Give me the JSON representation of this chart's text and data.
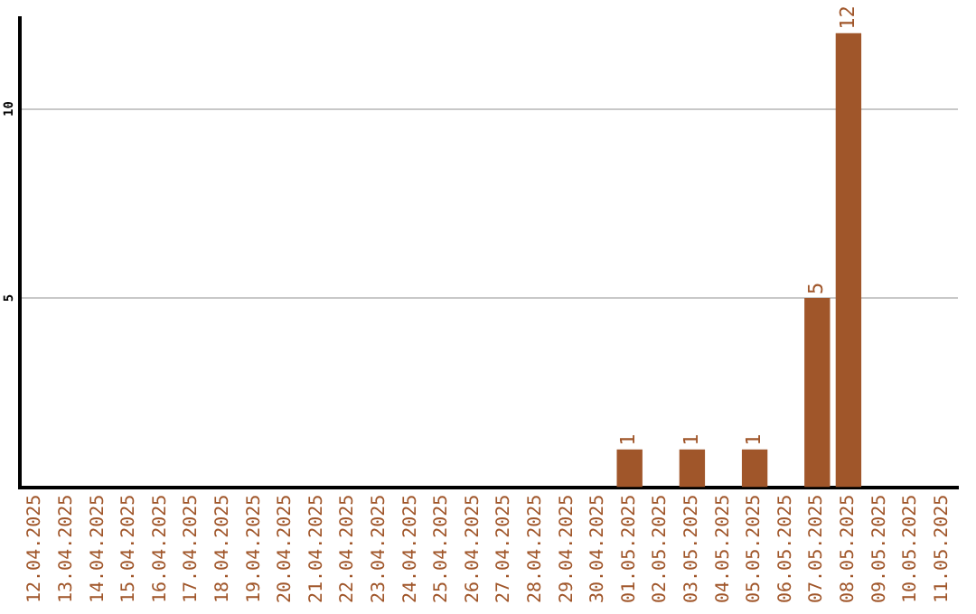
{
  "chart_data": {
    "type": "bar",
    "categories": [
      "12.04.2025",
      "13.04.2025",
      "14.04.2025",
      "15.04.2025",
      "16.04.2025",
      "17.04.2025",
      "18.04.2025",
      "19.04.2025",
      "20.04.2025",
      "21.04.2025",
      "22.04.2025",
      "23.04.2025",
      "24.04.2025",
      "25.04.2025",
      "26.04.2025",
      "27.04.2025",
      "28.04.2025",
      "29.04.2025",
      "30.04.2025",
      "01.05.2025",
      "02.05.2025",
      "03.05.2025",
      "04.05.2025",
      "05.05.2025",
      "06.05.2025",
      "07.05.2025",
      "08.05.2025",
      "09.05.2025",
      "10.05.2025",
      "11.05.2025"
    ],
    "values": [
      0,
      0,
      0,
      0,
      0,
      0,
      0,
      0,
      0,
      0,
      0,
      0,
      0,
      0,
      0,
      0,
      0,
      0,
      0,
      1,
      0,
      1,
      0,
      1,
      0,
      5,
      12,
      0,
      0,
      0
    ],
    "value_labels": [
      null,
      null,
      null,
      null,
      null,
      null,
      null,
      null,
      null,
      null,
      null,
      null,
      null,
      null,
      null,
      null,
      null,
      null,
      null,
      "1",
      null,
      "1",
      null,
      "1",
      null,
      "5",
      "12",
      null,
      null,
      null
    ],
    "color": "#a0562a",
    "ylim": [
      0,
      12.4
    ],
    "yticks": [
      5,
      10
    ],
    "grid": "y",
    "legend": false
  }
}
